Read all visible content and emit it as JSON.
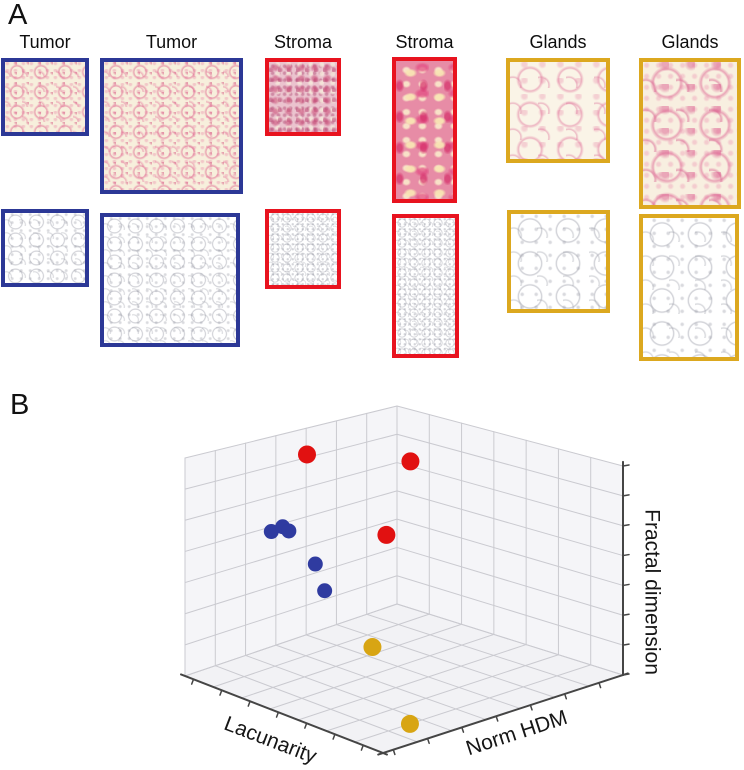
{
  "panel_a": {
    "label": "A",
    "columns": [
      {
        "label": "Tumor",
        "border_color": "#2c3896"
      },
      {
        "label": "Tumor",
        "border_color": "#2c3896"
      },
      {
        "label": "Stroma",
        "border_color": "#e8131f"
      },
      {
        "label": "Stroma",
        "border_color": "#e8131f"
      },
      {
        "label": "Glands",
        "border_color": "#dca81f"
      },
      {
        "label": "Glands",
        "border_color": "#dca81f"
      }
    ]
  },
  "panel_b": {
    "label": "B"
  },
  "colors": {
    "tumor_marker": "#2f3ba0",
    "stroma_marker": "#e11111",
    "glands_marker": "#d8a513",
    "grid_line": "#cacad0",
    "pane_fill_wall": "#f5f5f8",
    "pane_fill_floor": "#f2f2f5",
    "axis_line": "#454545"
  },
  "chart_data": {
    "type": "scatter",
    "projection": "3d",
    "title": "",
    "axes": {
      "x": "Lacunarity",
      "y": "Norm HDM",
      "z": "Fractal dimension"
    },
    "axis_tick_labels": "none shown",
    "grid": true,
    "grid_divisions": 7,
    "series": [
      {
        "name": "Tumor",
        "color": "#2f3ba0",
        "marker_radius": 7.5,
        "points": [
          {
            "lacunarity": 0.11,
            "norm_hdm": 0.3,
            "fractal_dimension": 0.615
          },
          {
            "lacunarity": 0.165,
            "norm_hdm": 0.3,
            "fractal_dimension": 0.655
          },
          {
            "lacunarity": 0.195,
            "norm_hdm": 0.3,
            "fractal_dimension": 0.645
          },
          {
            "lacunarity": 0.27,
            "norm_hdm": 0.35,
            "fractal_dimension": 0.5
          },
          {
            "lacunarity": 0.315,
            "norm_hdm": 0.35,
            "fractal_dimension": 0.39
          }
        ]
      },
      {
        "name": "Stroma",
        "color": "#e11111",
        "marker_radius": 9,
        "points": [
          {
            "lacunarity": 0.23,
            "norm_hdm": 0.35,
            "fractal_dimension": 1.0
          },
          {
            "lacunarity": 0.51,
            "norm_hdm": 0.55,
            "fractal_dimension": 1.0
          },
          {
            "lacunarity": 0.45,
            "norm_hdm": 0.5,
            "fractal_dimension": 0.65
          }
        ]
      },
      {
        "name": "Glands",
        "color": "#d8a513",
        "marker_radius": 9,
        "points": [
          {
            "lacunarity": 0.6,
            "norm_hdm": 0.3,
            "fractal_dimension": 0.24
          },
          {
            "lacunarity": 0.92,
            "norm_hdm": 0.18,
            "fractal_dimension": 0.04
          }
        ]
      }
    ],
    "note": "Axes show no numeric tick labels; coordinates are normalized 0-1 estimates of marker positions."
  }
}
